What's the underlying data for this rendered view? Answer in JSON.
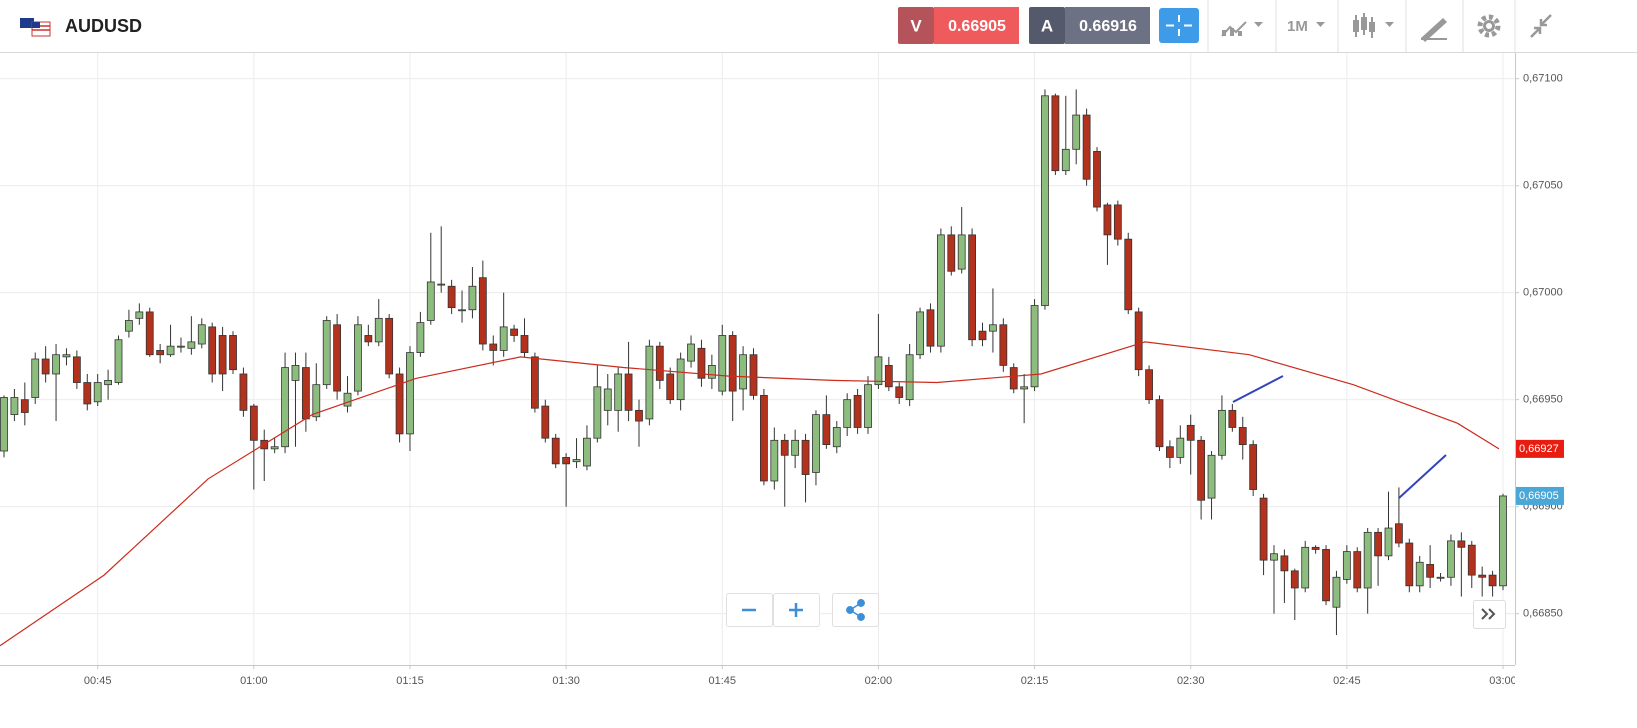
{
  "header": {
    "symbol": "AUDUSD",
    "sell_label": "V",
    "sell_price": "0.66905",
    "buy_label": "A",
    "buy_price": "0.66916",
    "timeframe": "1M"
  },
  "chart_data": {
    "type": "candlestick",
    "categories": [
      null,
      null,
      null,
      null,
      null,
      null,
      null,
      null,
      null,
      "00:45",
      null,
      null,
      null,
      null,
      null,
      null,
      null,
      null,
      null,
      null,
      null,
      null,
      null,
      null,
      "01:00",
      null,
      null,
      null,
      null,
      null,
      null,
      null,
      null,
      null,
      null,
      null,
      null,
      null,
      null,
      "01:15",
      null,
      null,
      null,
      null,
      null,
      null,
      null,
      null,
      null,
      null,
      null,
      null,
      null,
      null,
      "01:30",
      null,
      null,
      null,
      null,
      null,
      null,
      null,
      null,
      null,
      null,
      null,
      null,
      null,
      null,
      "01:45",
      null,
      null,
      null,
      null,
      null,
      null,
      null,
      null,
      null,
      null,
      null,
      null,
      null,
      null,
      "02:00",
      null,
      null,
      null,
      null,
      null,
      null,
      null,
      null,
      null,
      null,
      null,
      null,
      null,
      null,
      "02:15",
      null,
      null,
      null,
      null,
      null,
      null,
      null,
      null,
      null,
      null,
      null,
      null,
      null,
      null,
      "02:30",
      null,
      null,
      null,
      null,
      null,
      null,
      null,
      null,
      null,
      null,
      null,
      null,
      null,
      null,
      "02:45",
      null,
      null,
      null,
      null,
      null,
      null,
      null,
      null,
      null,
      null,
      null,
      null,
      null,
      null,
      "03:00"
    ],
    "open": [
      0.66926,
      0.66943,
      0.6695,
      0.66951,
      0.66969,
      0.66962,
      0.6697,
      0.6697,
      0.66958,
      0.66949,
      0.66957,
      0.66958,
      0.66982,
      0.66988,
      0.66991,
      0.66973,
      0.66971,
      0.66975,
      0.66974,
      0.66976,
      0.66984,
      0.6698,
      0.6698,
      0.66962,
      0.66947,
      0.66931,
      0.66927,
      0.66928,
      0.66959,
      0.66965,
      0.66942,
      0.66957,
      0.66985,
      0.66947,
      0.66954,
      0.6698,
      0.66977,
      0.66988,
      0.66962,
      0.66934,
      0.66972,
      0.66987,
      0.67004,
      0.67003,
      0.66992,
      0.66992,
      0.67007,
      0.66976,
      0.66973,
      0.66983,
      0.6698,
      0.6697,
      0.66947,
      0.66932,
      0.66923,
      0.66921,
      0.66919,
      0.66932,
      0.66945,
      0.66945,
      0.66962,
      0.66945,
      0.66941,
      0.66975,
      0.66962,
      0.6695,
      0.66968,
      0.66974,
      0.6696,
      0.66954,
      0.6698,
      0.66955,
      0.66971,
      0.66952,
      0.66912,
      0.66931,
      0.66924,
      0.66931,
      0.66916,
      0.66943,
      0.66928,
      0.66937,
      0.66952,
      0.66937,
      0.66957,
      0.66966,
      0.66956,
      0.6695,
      0.66971,
      0.66992,
      0.66975,
      0.67027,
      0.67011,
      0.67027,
      0.66982,
      0.66982,
      0.66985,
      0.66965,
      0.66955,
      0.66956,
      0.66994,
      0.67092,
      0.67057,
      0.67067,
      0.67083,
      0.67066,
      0.67041,
      0.67041,
      0.67025,
      0.66991,
      0.66964,
      0.6695,
      0.66928,
      0.66923,
      0.66938,
      0.66931,
      0.66904,
      0.66924,
      0.66945,
      0.66937,
      0.66929,
      0.66904,
      0.66875,
      0.66877,
      0.6687,
      0.66862,
      0.66881,
      0.6688,
      0.66853,
      0.66866,
      0.66879,
      0.66862,
      0.66888,
      0.66877,
      0.66892,
      0.66883,
      0.66863,
      0.66873,
      0.66867,
      0.66867,
      0.66884,
      0.66882,
      0.66868,
      0.66868,
      0.66863
    ],
    "high": [
      0.66952,
      0.66955,
      0.66958,
      0.66972,
      0.66975,
      0.66976,
      0.66974,
      0.66973,
      0.66962,
      0.66962,
      0.66964,
      0.6698,
      0.66992,
      0.66995,
      0.66993,
      0.66976,
      0.66985,
      0.66979,
      0.66989,
      0.66988,
      0.66986,
      0.66984,
      0.66982,
      0.66965,
      0.66948,
      0.66936,
      0.66932,
      0.66972,
      0.66972,
      0.66972,
      0.66967,
      0.66989,
      0.6699,
      0.66961,
      0.66989,
      0.66985,
      0.66997,
      0.6699,
      0.66965,
      0.66975,
      0.66991,
      0.67028,
      0.67031,
      0.67006,
      0.67001,
      0.67012,
      0.67015,
      0.6698,
      0.67,
      0.66985,
      0.66988,
      0.66972,
      0.6695,
      0.66934,
      0.66925,
      0.66932,
      0.66938,
      0.66966,
      0.66962,
      0.66965,
      0.66977,
      0.6695,
      0.66978,
      0.66977,
      0.66965,
      0.66972,
      0.6698,
      0.66978,
      0.66971,
      0.66985,
      0.66982,
      0.66975,
      0.66974,
      0.66955,
      0.66937,
      0.66934,
      0.66936,
      0.66934,
      0.66945,
      0.66952,
      0.6694,
      0.66953,
      0.66955,
      0.66961,
      0.6699,
      0.6697,
      0.66958,
      0.66976,
      0.66993,
      0.66995,
      0.6703,
      0.67031,
      0.6704,
      0.6703,
      0.66986,
      0.67002,
      0.66988,
      0.66967,
      0.66962,
      0.66997,
      0.67095,
      0.67093,
      0.67092,
      0.67095,
      0.67086,
      0.67068,
      0.67042,
      0.67043,
      0.67028,
      0.66993,
      0.66966,
      0.66952,
      0.66931,
      0.66938,
      0.66943,
      0.66933,
      0.66926,
      0.66952,
      0.66948,
      0.66942,
      0.66931,
      0.66906,
      0.66882,
      0.6688,
      0.66871,
      0.66884,
      0.66882,
      0.66882,
      0.6687,
      0.66882,
      0.66881,
      0.6689,
      0.6689,
      0.66907,
      0.66909,
      0.66885,
      0.66877,
      0.66882,
      0.66869,
      0.66887,
      0.66888,
      0.66884,
      0.66872,
      0.6687,
      0.66906
    ],
    "low": [
      0.66923,
      0.6694,
      0.66938,
      0.66948,
      0.66958,
      0.6694,
      0.66966,
      0.66955,
      0.66945,
      0.66947,
      0.6695,
      0.66957,
      0.66979,
      0.66985,
      0.6697,
      0.66967,
      0.6697,
      0.66972,
      0.66971,
      0.66974,
      0.66958,
      0.66954,
      0.66962,
      0.66942,
      0.66908,
      0.66912,
      0.66925,
      0.66925,
      0.66928,
      0.66935,
      0.6694,
      0.66955,
      0.6695,
      0.66944,
      0.66952,
      0.66975,
      0.66975,
      0.6696,
      0.6693,
      0.66926,
      0.6697,
      0.66985,
      0.67,
      0.6699,
      0.66986,
      0.66988,
      0.66973,
      0.66966,
      0.6697,
      0.66977,
      0.6697,
      0.66944,
      0.6693,
      0.66918,
      0.669,
      0.66918,
      0.66917,
      0.6693,
      0.66938,
      0.66935,
      0.6694,
      0.66928,
      0.66938,
      0.66955,
      0.66948,
      0.66945,
      0.66965,
      0.66956,
      0.66955,
      0.66952,
      0.6694,
      0.66945,
      0.6695,
      0.6691,
      0.66908,
      0.669,
      0.66918,
      0.66902,
      0.6691,
      0.66927,
      0.66925,
      0.66933,
      0.66934,
      0.66934,
      0.66955,
      0.66954,
      0.66948,
      0.66947,
      0.66969,
      0.66972,
      0.66972,
      0.67008,
      0.67009,
      0.66975,
      0.66975,
      0.66972,
      0.66963,
      0.66953,
      0.66939,
      0.66954,
      0.66992,
      0.67055,
      0.67055,
      0.6706,
      0.6705,
      0.67038,
      0.67013,
      0.67022,
      0.6699,
      0.66961,
      0.66948,
      0.66926,
      0.66918,
      0.6692,
      0.66915,
      0.66894,
      0.66894,
      0.66922,
      0.66935,
      0.66922,
      0.66905,
      0.66868,
      0.6685,
      0.66855,
      0.66847,
      0.6686,
      0.66878,
      0.66854,
      0.6684,
      0.66864,
      0.6686,
      0.6685,
      0.66863,
      0.66875,
      0.66881,
      0.6686,
      0.6686,
      0.66862,
      0.66865,
      0.66863,
      0.66858,
      0.66862,
      0.66858,
      0.66858,
      0.66861
    ],
    "close": [
      0.66951,
      0.66951,
      0.66944,
      0.66969,
      0.66962,
      0.66971,
      0.66971,
      0.66958,
      0.66948,
      0.66958,
      0.66959,
      0.66978,
      0.66987,
      0.66991,
      0.66971,
      0.66971,
      0.66975,
      0.66975,
      0.66977,
      0.66985,
      0.66962,
      0.66962,
      0.66964,
      0.66945,
      0.66931,
      0.66927,
      0.66928,
      0.66965,
      0.66966,
      0.66941,
      0.66957,
      0.66987,
      0.66954,
      0.66953,
      0.66985,
      0.66977,
      0.66988,
      0.66962,
      0.66934,
      0.66972,
      0.66986,
      0.67005,
      0.67004,
      0.66993,
      0.66992,
      0.67003,
      0.66976,
      0.66973,
      0.66984,
      0.6698,
      0.66972,
      0.66946,
      0.66932,
      0.6692,
      0.6692,
      0.66922,
      0.66932,
      0.66956,
      0.66955,
      0.66962,
      0.66945,
      0.6694,
      0.66975,
      0.66959,
      0.6695,
      0.66969,
      0.66976,
      0.6696,
      0.66966,
      0.6698,
      0.66954,
      0.66971,
      0.66952,
      0.66912,
      0.66931,
      0.66924,
      0.66931,
      0.66915,
      0.66943,
      0.66929,
      0.66937,
      0.6695,
      0.66937,
      0.66957,
      0.6697,
      0.66956,
      0.66951,
      0.66971,
      0.66991,
      0.66975,
      0.67027,
      0.6701,
      0.67027,
      0.66978,
      0.66978,
      0.66985,
      0.66966,
      0.66955,
      0.66956,
      0.66994,
      0.67092,
      0.67057,
      0.67067,
      0.67083,
      0.67053,
      0.6704,
      0.67027,
      0.67025,
      0.66992,
      0.66964,
      0.6695,
      0.66928,
      0.66923,
      0.66932,
      0.66931,
      0.66903,
      0.66924,
      0.66945,
      0.66937,
      0.66929,
      0.66908,
      0.66875,
      0.66878,
      0.6687,
      0.66862,
      0.66881,
      0.6688,
      0.66856,
      0.66867,
      0.66879,
      0.66862,
      0.66888,
      0.66877,
      0.6689,
      0.66883,
      0.66863,
      0.66874,
      0.66867,
      0.66867,
      0.66884,
      0.66881,
      0.66868,
      0.66867,
      0.66863,
      0.66905
    ],
    "up_color": "#8dbd7e",
    "down_color": "#b3321e",
    "ma": {
      "color": "#cc2b1d",
      "x": [
        0,
        10,
        20,
        30,
        40,
        50,
        60,
        70,
        80,
        90,
        100,
        110,
        120,
        130,
        140,
        144
      ],
      "values": [
        0.66835,
        0.66868,
        0.66913,
        0.66943,
        0.6696,
        0.6697,
        0.66965,
        0.66961,
        0.66959,
        0.66958,
        0.66962,
        0.66977,
        0.66971,
        0.66957,
        0.66939,
        0.66927
      ],
      "value_labels": [
        null,
        null,
        null,
        null,
        null,
        null,
        null,
        null,
        null,
        null,
        null,
        null,
        null,
        null,
        null,
        "0,66927"
      ]
    },
    "last_price": {
      "value": 0.66905,
      "label": "0,66905",
      "color": "#4aa8d8"
    },
    "ylim": [
      0.66826,
      0.67112
    ],
    "yticks": [
      {
        "value": 0.6685,
        "label": "0,66850"
      },
      {
        "value": 0.669,
        "label": "0,66900"
      },
      {
        "value": 0.6695,
        "label": "0,66950"
      },
      {
        "value": 0.67,
        "label": "0,67000"
      },
      {
        "value": 0.6705,
        "label": "0,67050"
      },
      {
        "value": 0.671,
        "label": "0,67100"
      }
    ],
    "grid": true
  }
}
